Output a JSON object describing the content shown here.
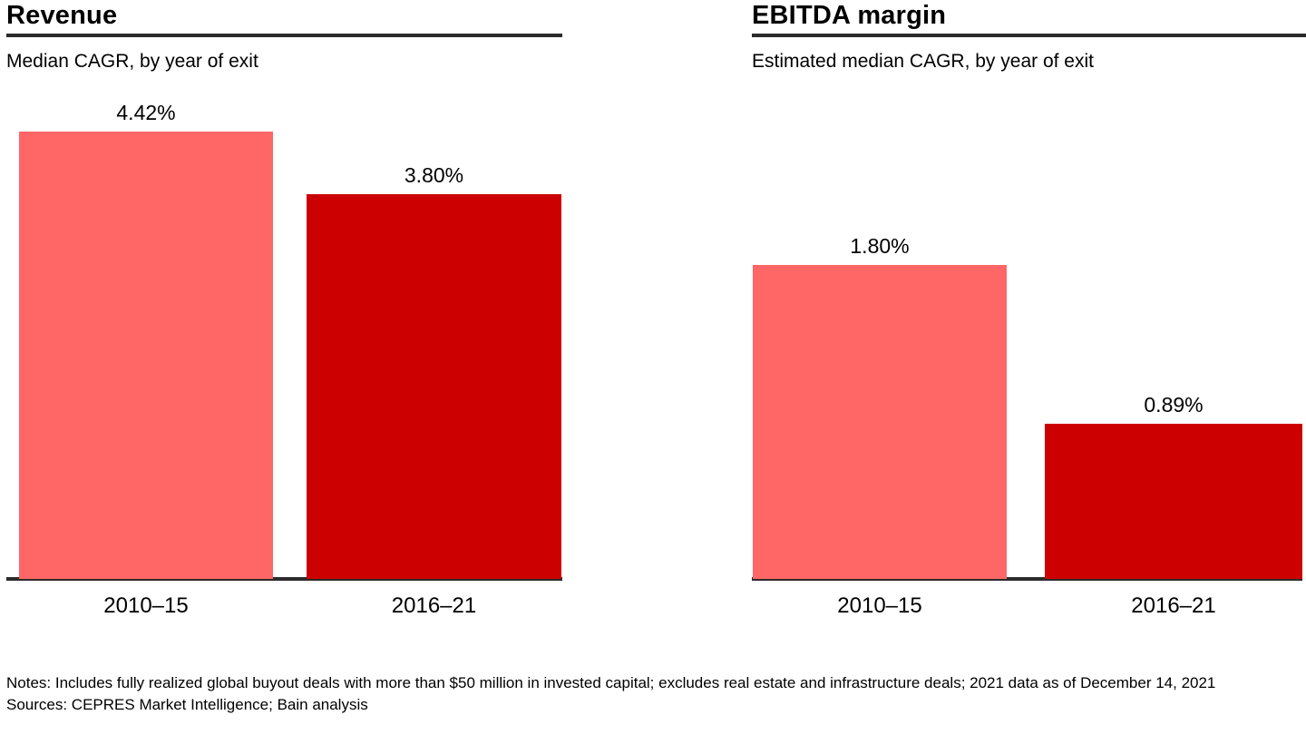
{
  "colors": {
    "bar_2010_15": "#FF6666",
    "bar_2016_21": "#CC0000",
    "axis": "#2B2B2B",
    "text": "#000000",
    "background": "#FFFFFF"
  },
  "chart_data": [
    {
      "type": "bar",
      "title": "Revenue",
      "subtitle": "Median CAGR, by year of exit",
      "categories": [
        "2010–15",
        "2016–21"
      ],
      "values": [
        4.42,
        3.8
      ],
      "value_labels": [
        "4.42%",
        "3.80%"
      ],
      "unit": "percent CAGR",
      "bar_colors": [
        "#FF6666",
        "#CC0000"
      ],
      "legend": "none",
      "grid": "off"
    },
    {
      "type": "bar",
      "title": "EBITDA margin",
      "subtitle": "Estimated median CAGR, by year of exit",
      "categories": [
        "2010–15",
        "2016–21"
      ],
      "values": [
        1.8,
        0.89
      ],
      "value_labels": [
        "1.80%",
        "0.89%"
      ],
      "unit": "percent CAGR",
      "bar_colors": [
        "#FF6666",
        "#CC0000"
      ],
      "legend": "none",
      "grid": "off"
    }
  ],
  "notes": {
    "text": "Notes: Includes fully realized global buyout deals with more than $50 million in invested capital; excludes real estate and infrastructure deals; 2021 data as of December 14, 2021",
    "sources": "Sources: CEPRES Market Intelligence; Bain analysis"
  }
}
